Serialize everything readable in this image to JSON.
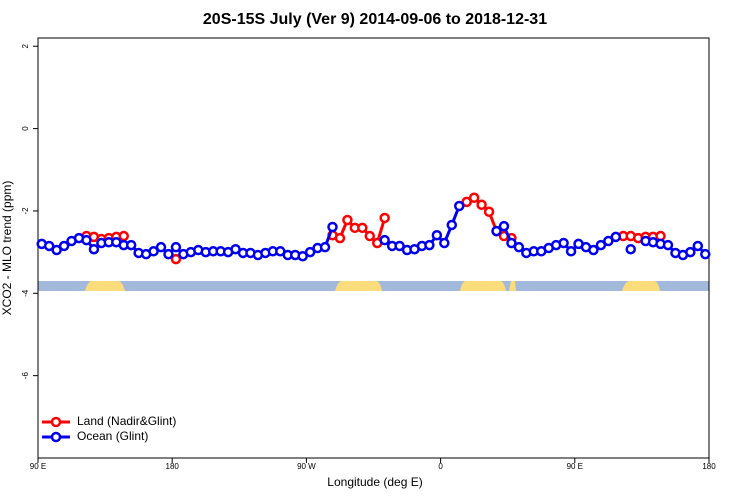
{
  "chart_data": {
    "type": "line",
    "title": "20S-15S July (Ver 9)   2014-09-06 to 2018-12-31",
    "xlabel": "Longitude (deg E)",
    "ylabel": "XCO2 - MLO trend (ppm)",
    "x": [
      92.5,
      97.5,
      102.5,
      107.5,
      112.5,
      117.5,
      122.5,
      127.5,
      132.5,
      137.5,
      142.5,
      147.5,
      152.5,
      157.5,
      162.5,
      167.5,
      172.5,
      177.5,
      182.5,
      187.5,
      192.5,
      197.5,
      202.5,
      207.5,
      212.5,
      217.5,
      222.5,
      227.5,
      232.5,
      237.5,
      242.5,
      247.5,
      252.5,
      257.5,
      262.5,
      267.5,
      272.5,
      277.5,
      282.5,
      287.5,
      292.5,
      297.5,
      302.5,
      307.5,
      312.5,
      317.5,
      322.5,
      327.5,
      332.5,
      337.5,
      342.5,
      347.5,
      352.5,
      357.5,
      362.5,
      367.5,
      372.5,
      377.5,
      382.5,
      387.5,
      392.5,
      397.5,
      402.5,
      407.5,
      412.5,
      417.5,
      422.5,
      427.5,
      432.5,
      437.5,
      442.5,
      447.5,
      452.5,
      457.5,
      462.5,
      467.5,
      472.5,
      477.5,
      482.5,
      487.5,
      492.5,
      497.5,
      502.5,
      507.5,
      512.5,
      517.5,
      522.5,
      527.5,
      532.5,
      537.5
    ],
    "series": [
      {
        "name": "Land (Nadir&Glint)",
        "color": "#ff0000",
        "values": [
          null,
          null,
          null,
          null,
          null,
          null,
          -2.61,
          -2.63,
          -2.68,
          -2.66,
          -2.63,
          -2.61,
          null,
          null,
          null,
          null,
          null,
          null,
          -3.17,
          null,
          null,
          null,
          null,
          null,
          null,
          null,
          null,
          null,
          null,
          null,
          null,
          null,
          null,
          null,
          null,
          null,
          null,
          null,
          null,
          -2.59,
          -2.66,
          -2.22,
          -2.41,
          -2.41,
          -2.61,
          -2.78,
          -2.17,
          null,
          null,
          null,
          null,
          null,
          null,
          null,
          null,
          null,
          null,
          -1.78,
          -1.68,
          -1.85,
          -2.02,
          -2.49,
          -2.61,
          -2.66,
          null,
          null,
          null,
          null,
          null,
          null,
          null,
          null,
          null,
          null,
          null,
          null,
          null,
          null,
          -2.61,
          -2.61,
          -2.66,
          -2.63,
          -2.63,
          -2.61,
          null,
          null,
          null,
          null,
          null,
          null
        ]
      },
      {
        "name": "Ocean (Glint)",
        "color": "#0000ee",
        "values": [
          -2.8,
          -2.85,
          -2.95,
          -2.85,
          -2.73,
          -2.66,
          -2.71,
          -2.93,
          -2.78,
          -2.76,
          -2.76,
          -2.83,
          -2.83,
          -3.02,
          -3.05,
          -2.98,
          -2.88,
          -3.05,
          -2.88,
          -3.05,
          -3.0,
          -2.95,
          -3.0,
          -2.98,
          -2.98,
          -3.0,
          -2.93,
          -3.02,
          -3.02,
          -3.07,
          -3.02,
          -2.98,
          -2.98,
          -3.07,
          -3.07,
          -3.1,
          -3.0,
          -2.9,
          -2.88,
          -2.39,
          null,
          null,
          null,
          null,
          null,
          null,
          -2.71,
          -2.85,
          -2.85,
          -2.95,
          -2.93,
          -2.85,
          -2.83,
          -2.59,
          -2.78,
          -2.34,
          -1.88,
          null,
          null,
          null,
          null,
          -2.49,
          -2.37,
          -2.78,
          -2.88,
          -3.02,
          -2.98,
          -2.98,
          -2.9,
          -2.83,
          -2.78,
          -2.98,
          -2.8,
          -2.88,
          -2.95,
          -2.83,
          -2.73,
          -2.63,
          null,
          -2.93,
          null,
          -2.73,
          -2.76,
          -2.8,
          -2.83,
          -3.02,
          -3.07,
          -3.0,
          -2.85,
          -3.05
        ]
      }
    ],
    "xlim": [
      90,
      540
    ],
    "xticks": [
      {
        "value": 90,
        "label": "90 E"
      },
      180,
      {
        "value": 270,
        "label": "90 W"
      },
      {
        "value": 360,
        "label": "0"
      },
      {
        "value": 450,
        "label": "90 E"
      },
      {
        "value": 540,
        "label": "180"
      }
    ],
    "ylim": [
      -8,
      2.2
    ],
    "yticks": [
      -6,
      -4,
      -2,
      0,
      2
    ],
    "legend": "bottom-left"
  }
}
